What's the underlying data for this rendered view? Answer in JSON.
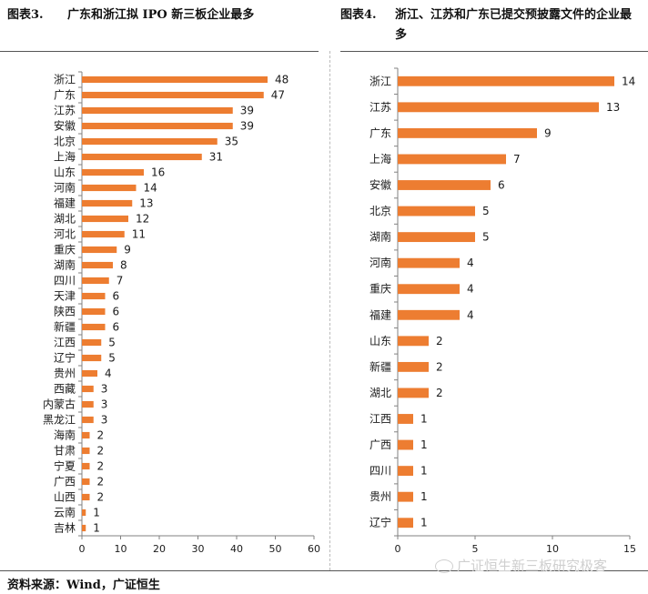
{
  "left_title": {
    "label": "图表3.",
    "text": "广东和浙江拟 IPO 新三板企业最多"
  },
  "right_title": {
    "label": "图表4.",
    "text": "浙江、江苏和广东已提交预披露文件的企业最多"
  },
  "source": "资料来源：Wind，广证恒生",
  "watermark": "广证恒生新三板研究极客",
  "colors": {
    "bar": "#ED7D31",
    "axis": "#808080",
    "text": "#1a1a1a"
  },
  "chart_data": [
    {
      "type": "bar",
      "orientation": "horizontal",
      "title": "广东和浙江拟 IPO 新三板企业最多",
      "categories": [
        "浙江",
        "广东",
        "江苏",
        "安徽",
        "北京",
        "上海",
        "山东",
        "河南",
        "福建",
        "湖北",
        "河北",
        "重庆",
        "湖南",
        "四川",
        "天津",
        "陕西",
        "新疆",
        "江西",
        "辽宁",
        "贵州",
        "西藏",
        "内蒙古",
        "黑龙江",
        "海南",
        "甘肃",
        "宁夏",
        "广西",
        "山西",
        "云南",
        "吉林"
      ],
      "values": [
        48,
        47,
        39,
        39,
        35,
        31,
        16,
        14,
        13,
        12,
        11,
        9,
        8,
        7,
        6,
        6,
        6,
        5,
        5,
        4,
        3,
        3,
        3,
        2,
        2,
        2,
        2,
        2,
        1,
        1
      ],
      "xlim": [
        0,
        60
      ],
      "xticks": [
        0,
        10,
        20,
        30,
        40,
        50,
        60
      ],
      "data_labels": true,
      "grid": false,
      "xlabel": "",
      "ylabel": ""
    },
    {
      "type": "bar",
      "orientation": "horizontal",
      "title": "浙江、江苏和广东已提交预披露文件的企业最多",
      "categories": [
        "浙江",
        "江苏",
        "广东",
        "上海",
        "安徽",
        "北京",
        "湖南",
        "河南",
        "重庆",
        "福建",
        "山东",
        "新疆",
        "湖北",
        "江西",
        "广西",
        "四川",
        "贵州",
        "辽宁"
      ],
      "values": [
        14,
        13,
        9,
        7,
        6,
        5,
        5,
        4,
        4,
        4,
        2,
        2,
        2,
        1,
        1,
        1,
        1,
        1
      ],
      "xlim": [
        0,
        15
      ],
      "xticks": [
        0,
        5,
        10,
        15
      ],
      "data_labels": true,
      "grid": false,
      "xlabel": "",
      "ylabel": ""
    }
  ]
}
